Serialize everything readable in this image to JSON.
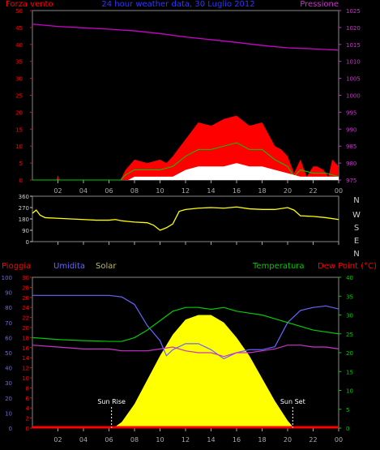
{
  "chart_data": [
    {
      "type": "area",
      "panel": "wind_pressure",
      "title": "24 hour weather data",
      "title_date": "30 Luglio 2012",
      "left_axis_label": "Forza vento",
      "right_axis_label": "Pressione",
      "left_range": [
        0,
        50
      ],
      "left_ticks": [
        "0",
        "5",
        "10",
        "15",
        "20",
        "25",
        "30",
        "35",
        "40",
        "45",
        "50"
      ],
      "right_range": [
        975,
        1025
      ],
      "right_ticks": [
        "975",
        "980",
        "985",
        "990",
        "995",
        "1000",
        "1005",
        "1010",
        "1015",
        "1020",
        "1025"
      ],
      "x_ticks": [
        "02",
        "04",
        "06",
        "08",
        "10",
        "12",
        "14",
        "16",
        "18",
        "20",
        "22",
        "00"
      ],
      "colors": {
        "gust": "#ff0000",
        "avg": "#00cc00",
        "min": "#ffffff",
        "pressure": "#cc00cc",
        "axis": "#ff0000",
        "right_axis": "#cc33cc"
      },
      "pressure": {
        "x": [
          0,
          2,
          4,
          6,
          8,
          10,
          12,
          14,
          16,
          18,
          20,
          22,
          24
        ],
        "y": [
          1021,
          1020.3,
          1019.9,
          1019.5,
          1019,
          1018.2,
          1017.2,
          1016.4,
          1015.6,
          1014.7,
          1014,
          1013.7,
          1013.3
        ]
      },
      "wind_gust": {
        "x": [
          0,
          1.9,
          2,
          2.1,
          6.9,
          7.3,
          8,
          9,
          10,
          10.5,
          11,
          12,
          13,
          14,
          15,
          16,
          17,
          18,
          19,
          19.5,
          20,
          20.5,
          21,
          21.5,
          22,
          22.3,
          22.8,
          23.2,
          23.5,
          24
        ],
        "y": [
          0,
          0,
          1.5,
          0,
          0,
          3,
          6,
          5,
          6,
          5,
          7,
          12,
          17,
          16,
          18,
          19,
          16,
          17,
          10,
          9,
          7,
          2,
          6,
          1,
          4,
          4,
          3,
          1,
          6,
          4
        ]
      },
      "wind_avg": {
        "x": [
          0,
          6.9,
          7.3,
          8,
          9,
          10,
          11,
          12,
          13,
          14,
          15,
          16,
          17,
          18,
          19,
          20,
          20.5,
          21,
          22,
          23,
          24
        ],
        "y": [
          0,
          0,
          1.5,
          3,
          3,
          3,
          4,
          7,
          9,
          9,
          10,
          11,
          9,
          9,
          6,
          4,
          1,
          3,
          2,
          2,
          1
        ]
      },
      "wind_min": {
        "x": [
          0,
          6.9,
          7.5,
          8,
          9,
          10,
          11,
          12,
          13,
          14,
          15,
          16,
          17,
          18,
          19,
          20,
          21,
          22,
          23,
          24
        ],
        "y": [
          0,
          0,
          0,
          1,
          1,
          1,
          1,
          3,
          4,
          4,
          4,
          5,
          4,
          4,
          3,
          2,
          1,
          1,
          1,
          1
        ]
      }
    },
    {
      "type": "line",
      "panel": "wind_direction",
      "left_ticks": [
        "0",
        "90",
        "180",
        "270",
        "360"
      ],
      "left_range": [
        0,
        360
      ],
      "right_labels": [
        "N",
        "W",
        "S",
        "E",
        "N"
      ],
      "x_ticks": [
        "02",
        "04",
        "06",
        "08",
        "10",
        "12",
        "14",
        "16",
        "18",
        "20",
        "22",
        "00"
      ],
      "color": "#ffff00",
      "direction": {
        "x": [
          0,
          0.3,
          0.6,
          1,
          2,
          3,
          4,
          5,
          6,
          6.5,
          7,
          7.5,
          8,
          9,
          9.5,
          10,
          10.5,
          11,
          11.5,
          12,
          13,
          14,
          15,
          16,
          17,
          18,
          19,
          20,
          20.5,
          21,
          22,
          23,
          24
        ],
        "y": [
          225,
          250,
          210,
          190,
          185,
          180,
          175,
          170,
          170,
          175,
          165,
          160,
          155,
          150,
          130,
          90,
          110,
          140,
          240,
          255,
          265,
          270,
          265,
          275,
          260,
          255,
          255,
          270,
          250,
          205,
          200,
          190,
          175
        ]
      }
    },
    {
      "type": "area",
      "panel": "rain_humidity_solar_temp",
      "labels": {
        "rain": "Pioggia",
        "humidity": "Umidita",
        "solar": "Solar",
        "temperature": "Temperatura",
        "dew": "Dew Point (°C)"
      },
      "humidity_ticks": [
        "0",
        "10",
        "20",
        "30",
        "40",
        "50",
        "60",
        "70",
        "80",
        "90",
        "100"
      ],
      "rain_ticks": [
        "0",
        "2",
        "4",
        "6",
        "8",
        "10",
        "12",
        "14",
        "16",
        "18",
        "20",
        "22",
        "24",
        "26",
        "28",
        "30"
      ],
      "temp_ticks": [
        "0",
        "5",
        "10",
        "15",
        "20",
        "25",
        "30",
        "35",
        "40"
      ],
      "x_ticks": [
        "02",
        "04",
        "06",
        "08",
        "10",
        "12",
        "14",
        "16",
        "18",
        "20",
        "22",
        "00"
      ],
      "annotations": [
        "Sun Rise",
        "Sun Set"
      ],
      "sunrise_hour": 6.2,
      "sunset_hour": 20.4,
      "colors": {
        "rain": "#ff0000",
        "humidity": "#6666ff",
        "solar": "#ffff00",
        "temperature": "#00cc00",
        "dew": "#cc33cc",
        "rain_axis": "#ff0000",
        "humidity_axis": "#6666ff",
        "temp_axis": "#00cc00"
      },
      "humidity": {
        "x": [
          0,
          2,
          4,
          6,
          7,
          8,
          9,
          10,
          10.5,
          11,
          12,
          13,
          14,
          15,
          16,
          17,
          18,
          19,
          20,
          21,
          22,
          23,
          24
        ],
        "y": [
          88,
          88,
          88,
          88,
          87,
          82,
          68,
          58,
          48,
          52,
          56,
          56,
          52,
          46,
          50,
          52,
          52,
          54,
          70,
          78,
          80,
          81,
          79
        ]
      },
      "temperature": {
        "x": [
          0,
          2,
          4,
          6,
          7,
          8,
          9,
          10,
          11,
          12,
          13,
          14,
          15,
          16,
          17,
          18,
          19,
          20,
          21,
          22,
          23,
          24
        ],
        "y": [
          24,
          23.5,
          23.2,
          23,
          23,
          24,
          26,
          28.5,
          31,
          32,
          32,
          31.5,
          32,
          31,
          30.5,
          30,
          29,
          28,
          27,
          26,
          25.5,
          25
        ]
      },
      "dew_point": {
        "x": [
          0,
          2,
          4,
          6,
          7,
          8,
          9,
          10,
          11,
          12,
          13,
          14,
          15,
          16,
          17,
          18,
          19,
          20,
          21,
          22,
          23,
          24
        ],
        "y": [
          22,
          21.5,
          21,
          21,
          20.5,
          20.5,
          20.5,
          21,
          21.5,
          20.5,
          20,
          20,
          19,
          20,
          20,
          20.5,
          21,
          22,
          22,
          21.5,
          21.5,
          21
        ]
      },
      "solar": {
        "x": [
          0,
          6,
          6.5,
          7,
          8,
          9,
          10,
          11,
          12,
          13,
          14,
          15,
          16,
          17,
          18,
          19,
          20,
          20.4,
          21,
          24
        ],
        "y": [
          0,
          0,
          1,
          4,
          16,
          32,
          48,
          62,
          72,
          75,
          75,
          70,
          60,
          48,
          33,
          18,
          5,
          1,
          0,
          0
        ]
      },
      "solar_max": 100
    }
  ]
}
